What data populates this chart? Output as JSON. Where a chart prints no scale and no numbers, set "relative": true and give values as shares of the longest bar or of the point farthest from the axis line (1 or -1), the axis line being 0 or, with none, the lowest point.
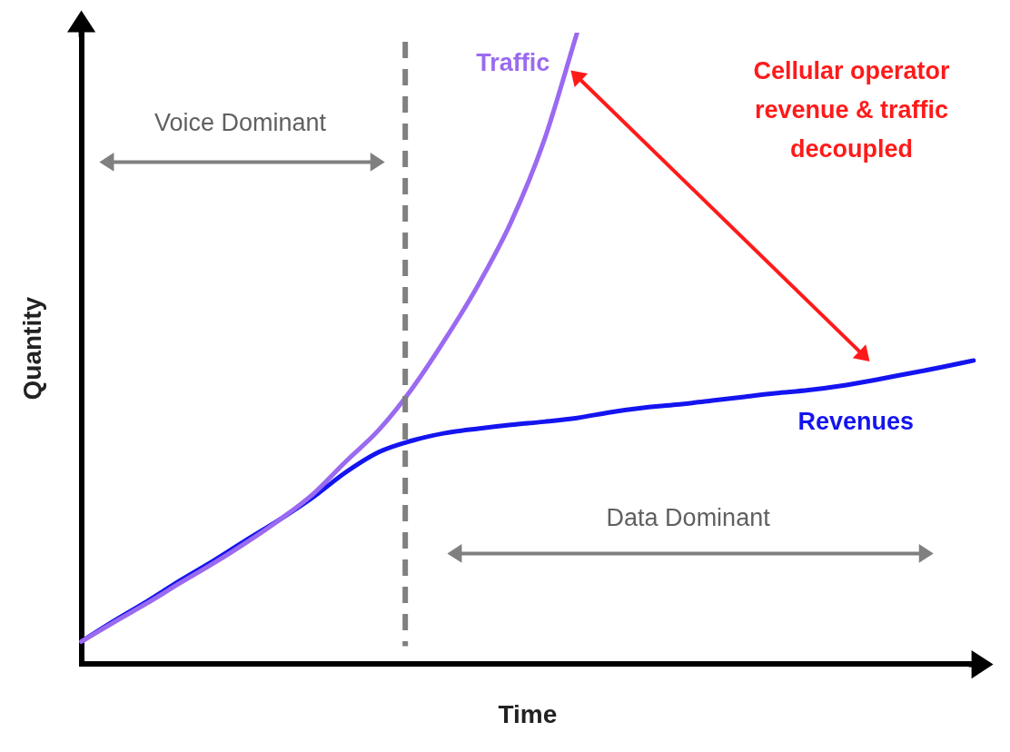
{
  "chart_data": {
    "type": "line",
    "relative": true,
    "xlabel": "Time",
    "ylabel": "Quantity",
    "categories": [
      null,
      null,
      null,
      null,
      null,
      null,
      null,
      null,
      null,
      null,
      null,
      null,
      null,
      null,
      null,
      null,
      null,
      null,
      null,
      null,
      null,
      null,
      null,
      null,
      null,
      null,
      null,
      null
    ],
    "series": [
      {
        "name": "Traffic",
        "color": "#9a6af0",
        "values": [
          0.036,
          0.067,
          0.097,
          0.129,
          0.16,
          0.193,
          0.229,
          0.269,
          0.321,
          0.371,
          0.436,
          0.514,
          0.6,
          0.7,
          0.829,
          1,
          null,
          null,
          null,
          null,
          null,
          null,
          null,
          null,
          null,
          null,
          null,
          null
        ]
      },
      {
        "name": "Revenues",
        "color": "#1414f0",
        "values": [
          0.036,
          0.069,
          0.1,
          0.133,
          0.164,
          0.197,
          0.229,
          0.264,
          0.304,
          0.336,
          0.354,
          0.366,
          0.373,
          0.379,
          0.384,
          0.39,
          0.399,
          0.406,
          0.411,
          0.417,
          0.423,
          0.429,
          0.434,
          0.441,
          0.45,
          0.46,
          0.47,
          0.481
        ]
      }
    ],
    "annotations": [
      "Voice Dominant",
      "Data Dominant",
      "Cellular operator revenue & traffic decoupled"
    ],
    "grid": false,
    "legend": false,
    "marker": "none",
    "line_style": "solid"
  }
}
